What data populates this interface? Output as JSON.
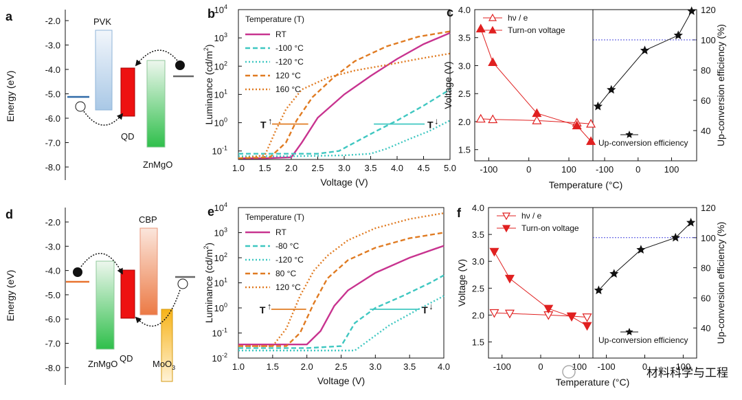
{
  "panels": {
    "a": {
      "letter": "a",
      "ylabel": "Energy (eV)",
      "yticks": [
        "-2.0",
        "-3.0",
        "-4.0",
        "-5.0",
        "-6.0",
        "-7.0",
        "-8.0"
      ],
      "labels": {
        "pvk": "PVK",
        "qd": "QD",
        "znmgo": "ZnMgO"
      },
      "levels": {
        "pvk": [
          -2.4,
          -5.7
        ],
        "qd": [
          -4.0,
          -6.0
        ],
        "znmgo": [
          -3.6,
          -7.3
        ],
        "left_electrode": -5.15,
        "right_electrode": -4.3
      }
    },
    "d": {
      "letter": "d",
      "ylabel": "Energy (eV)",
      "yticks": [
        "-2.0",
        "-3.0",
        "-4.0",
        "-5.0",
        "-6.0",
        "-7.0",
        "-8.0"
      ],
      "labels": {
        "cbp": "CBP",
        "qd": "QD",
        "znmgo": "ZnMgO",
        "moo3": "MoO",
        "moo3_sub": "3"
      },
      "levels": {
        "znmgo": [
          -3.6,
          -7.3
        ],
        "qd": [
          -4.0,
          -6.0
        ],
        "cbp": [
          -2.3,
          -5.8
        ],
        "moo3": [
          -5.6,
          -8.5
        ],
        "left_electrode": -4.5,
        "right_electrode": -4.3
      }
    },
    "c": {
      "letter": "c"
    },
    "f": {
      "letter": "f"
    }
  },
  "chart_data": [
    {
      "panel": "b",
      "type": "line",
      "xlabel": "Voltage (V)",
      "ylabel": "Luminance (cd/m",
      "ylabel_sup": "2",
      "ylabel_end": ")",
      "xlim": [
        1.0,
        5.0
      ],
      "ylim_log": [
        -1.3,
        4
      ],
      "xticks": [
        "1.0",
        "1.5",
        "2.0",
        "2.5",
        "3.0",
        "3.5",
        "4.0",
        "4.5",
        "5.0"
      ],
      "yticks": [
        {
          "base": "10",
          "exp": "-1"
        },
        {
          "base": "10",
          "exp": "0"
        },
        {
          "base": "10",
          "exp": "1"
        },
        {
          "base": "10",
          "exp": "2"
        },
        {
          "base": "10",
          "exp": "3"
        },
        {
          "base": "10",
          "exp": "4"
        }
      ],
      "legend_title": "Temperature (T)",
      "arrow_left": "T",
      "arrow_right": "T",
      "series": [
        {
          "name": "RT",
          "color": "#c8338f",
          "dash": "solid",
          "x": [
            1,
            1.5,
            2.0,
            2.2,
            2.5,
            3.0,
            3.5,
            4.0,
            4.5,
            5.0
          ],
          "y": [
            0.055,
            0.055,
            0.06,
            0.2,
            1.5,
            10,
            45,
            180,
            600,
            1500
          ]
        },
        {
          "name": "-100 °C",
          "color": "#3fc7c1",
          "dash": "dash",
          "x": [
            1,
            2,
            2.5,
            2.9,
            3.2,
            3.6,
            4.0,
            4.5,
            5.0
          ],
          "y": [
            0.08,
            0.08,
            0.08,
            0.1,
            0.2,
            0.5,
            1.2,
            4,
            15
          ]
        },
        {
          "name": "-120 °C",
          "color": "#3fc7c1",
          "dash": "dot",
          "x": [
            1,
            2,
            3,
            3.5,
            3.8,
            4.2,
            4.6,
            5.0
          ],
          "y": [
            0.065,
            0.065,
            0.07,
            0.08,
            0.12,
            0.25,
            0.5,
            1.2
          ]
        },
        {
          "name": "120 °C",
          "color": "#e07b22",
          "dash": "dash",
          "x": [
            1,
            1.6,
            1.9,
            2.1,
            2.4,
            2.8,
            3.2,
            3.8,
            4.4,
            5.0
          ],
          "y": [
            0.055,
            0.06,
            0.2,
            1.2,
            8,
            40,
            150,
            500,
            1100,
            1700
          ]
        },
        {
          "name": "160 °C",
          "color": "#e07b22",
          "dash": "dot",
          "x": [
            1,
            1.5,
            1.7,
            1.9,
            2.2,
            2.7,
            3.2,
            3.8,
            4.4,
            5.0
          ],
          "y": [
            0.055,
            0.07,
            0.5,
            3,
            15,
            40,
            70,
            110,
            180,
            280
          ]
        }
      ]
    },
    {
      "panel": "e",
      "type": "line",
      "xlabel": "Voltage (V)",
      "ylabel": "Luminance (cd/m",
      "ylabel_sup": "2",
      "ylabel_end": ")",
      "xlim": [
        1.0,
        4.0
      ],
      "ylim_log": [
        -2,
        4
      ],
      "xticks": [
        "1.0",
        "1.5",
        "2.0",
        "2.5",
        "3.0",
        "3.5",
        "4.0"
      ],
      "yticks": [
        {
          "base": "10",
          "exp": "-2"
        },
        {
          "base": "10",
          "exp": "-1"
        },
        {
          "base": "10",
          "exp": "0"
        },
        {
          "base": "10",
          "exp": "1"
        },
        {
          "base": "10",
          "exp": "2"
        },
        {
          "base": "10",
          "exp": "3"
        },
        {
          "base": "10",
          "exp": "4"
        }
      ],
      "legend_title": "Temperature (T)",
      "arrow_left": "T",
      "arrow_right": "T",
      "series": [
        {
          "name": "RT",
          "color": "#c8338f",
          "dash": "solid",
          "x": [
            1,
            1.5,
            2.0,
            2.2,
            2.4,
            2.6,
            3.0,
            3.5,
            4.0
          ],
          "y": [
            0.035,
            0.035,
            0.035,
            0.12,
            1.2,
            5,
            25,
            100,
            300
          ]
        },
        {
          "name": "-80 °C",
          "color": "#3fc7c1",
          "dash": "dash",
          "x": [
            1,
            2,
            2.5,
            2.7,
            3.0,
            3.4,
            3.8,
            4.0
          ],
          "y": [
            0.025,
            0.025,
            0.03,
            0.25,
            1,
            3,
            10,
            20
          ]
        },
        {
          "name": "-120 °C",
          "color": "#3fc7c1",
          "dash": "dot",
          "x": [
            1,
            2,
            2.7,
            2.9,
            3.2,
            3.6,
            4.0
          ],
          "y": [
            0.02,
            0.02,
            0.02,
            0.05,
            0.2,
            0.8,
            3
          ]
        },
        {
          "name": "80 °C",
          "color": "#e07b22",
          "dash": "dash",
          "x": [
            1,
            1.7,
            1.9,
            2.1,
            2.3,
            2.6,
            3.0,
            3.5,
            4.0
          ],
          "y": [
            0.03,
            0.03,
            0.1,
            1.5,
            15,
            80,
            250,
            600,
            1000
          ]
        },
        {
          "name": "120 °C",
          "color": "#e07b22",
          "dash": "dot",
          "x": [
            1,
            1.5,
            1.7,
            1.9,
            2.1,
            2.3,
            2.6,
            3.0,
            3.5,
            4.0
          ],
          "y": [
            0.03,
            0.03,
            0.15,
            3,
            30,
            120,
            500,
            1500,
            3500,
            6000
          ]
        }
      ]
    },
    {
      "panel": "c",
      "type": "scatter",
      "xlabel": "Temperature (°C)",
      "ylabel_left": "Voltage (V)",
      "ylabel_right": "Up-conversion efficiency (%)",
      "left": {
        "xlim": [
          -135,
          160
        ],
        "xticks": [
          "-100",
          "0",
          "100"
        ],
        "ylim": [
          1.3,
          4.0
        ],
        "yticks": [
          "1.5",
          "2.0",
          "2.5",
          "3.0",
          "3.5",
          "4.0"
        ]
      },
      "right": {
        "xlim": [
          -135,
          175
        ],
        "xticks": [
          "-100",
          "0",
          "100"
        ],
        "ylim": [
          20,
          120
        ],
        "yticks": [
          "40",
          "60",
          "80",
          "100",
          "120"
        ]
      },
      "legend": [
        "hν / e",
        "Turn-on voltage",
        "Up-conversion efficiency"
      ],
      "series": [
        {
          "name": "hν / e",
          "marker": "triangle-up-open",
          "color": "#e02020",
          "x": [
            -120,
            -90,
            20,
            120,
            155
          ],
          "y": [
            2.05,
            2.04,
            2.02,
            1.98,
            1.96
          ]
        },
        {
          "name": "Turn-on voltage",
          "marker": "triangle-up",
          "color": "#e02020",
          "x": [
            -120,
            -90,
            20,
            120,
            155
          ],
          "y": [
            3.66,
            3.06,
            2.15,
            1.93,
            1.65
          ]
        },
        {
          "name": "Up-conversion efficiency",
          "marker": "star",
          "color": "#111111",
          "x": [
            -120,
            -80,
            20,
            120,
            160
          ],
          "y": [
            56,
            67,
            93,
            103,
            119
          ]
        }
      ],
      "reference_line": 100
    },
    {
      "panel": "f",
      "type": "scatter",
      "xlabel": "Temperature (°C)",
      "ylabel_left": "Voltage (V)",
      "ylabel_right": "Up-conversion efficiency (%)",
      "left": {
        "xlim": [
          -135,
          135
        ],
        "xticks": [
          "-100",
          "0",
          "100"
        ],
        "ylim": [
          1.2,
          4.0
        ],
        "yticks": [
          "1.5",
          "2.0",
          "2.5",
          "3.0",
          "3.5",
          "4.0"
        ]
      },
      "right": {
        "xlim": [
          -135,
          135
        ],
        "xticks": [
          "-100",
          "0",
          "100"
        ],
        "ylim": [
          20,
          120
        ],
        "yticks": [
          "40",
          "60",
          "80",
          "100",
          "120"
        ]
      },
      "legend": [
        "hν / e",
        "Turn-on voltage",
        "Up-conversion efficiency"
      ],
      "series": [
        {
          "name": "hν / e",
          "marker": "triangle-down-open",
          "color": "#e02020",
          "x": [
            -120,
            -80,
            20,
            80,
            120
          ],
          "y": [
            2.04,
            2.03,
            2.0,
            1.98,
            1.96
          ]
        },
        {
          "name": "Turn-on voltage",
          "marker": "triangle-down",
          "color": "#e02020",
          "x": [
            -120,
            -80,
            20,
            80,
            120
          ],
          "y": [
            3.18,
            2.68,
            2.12,
            1.97,
            1.8
          ]
        },
        {
          "name": "Up-conversion efficiency",
          "marker": "star",
          "color": "#111111",
          "x": [
            -120,
            -80,
            -10,
            80,
            120
          ],
          "y": [
            65,
            76,
            92,
            100,
            110
          ]
        }
      ],
      "reference_line": 100
    }
  ],
  "watermark": "材料科学与工程"
}
